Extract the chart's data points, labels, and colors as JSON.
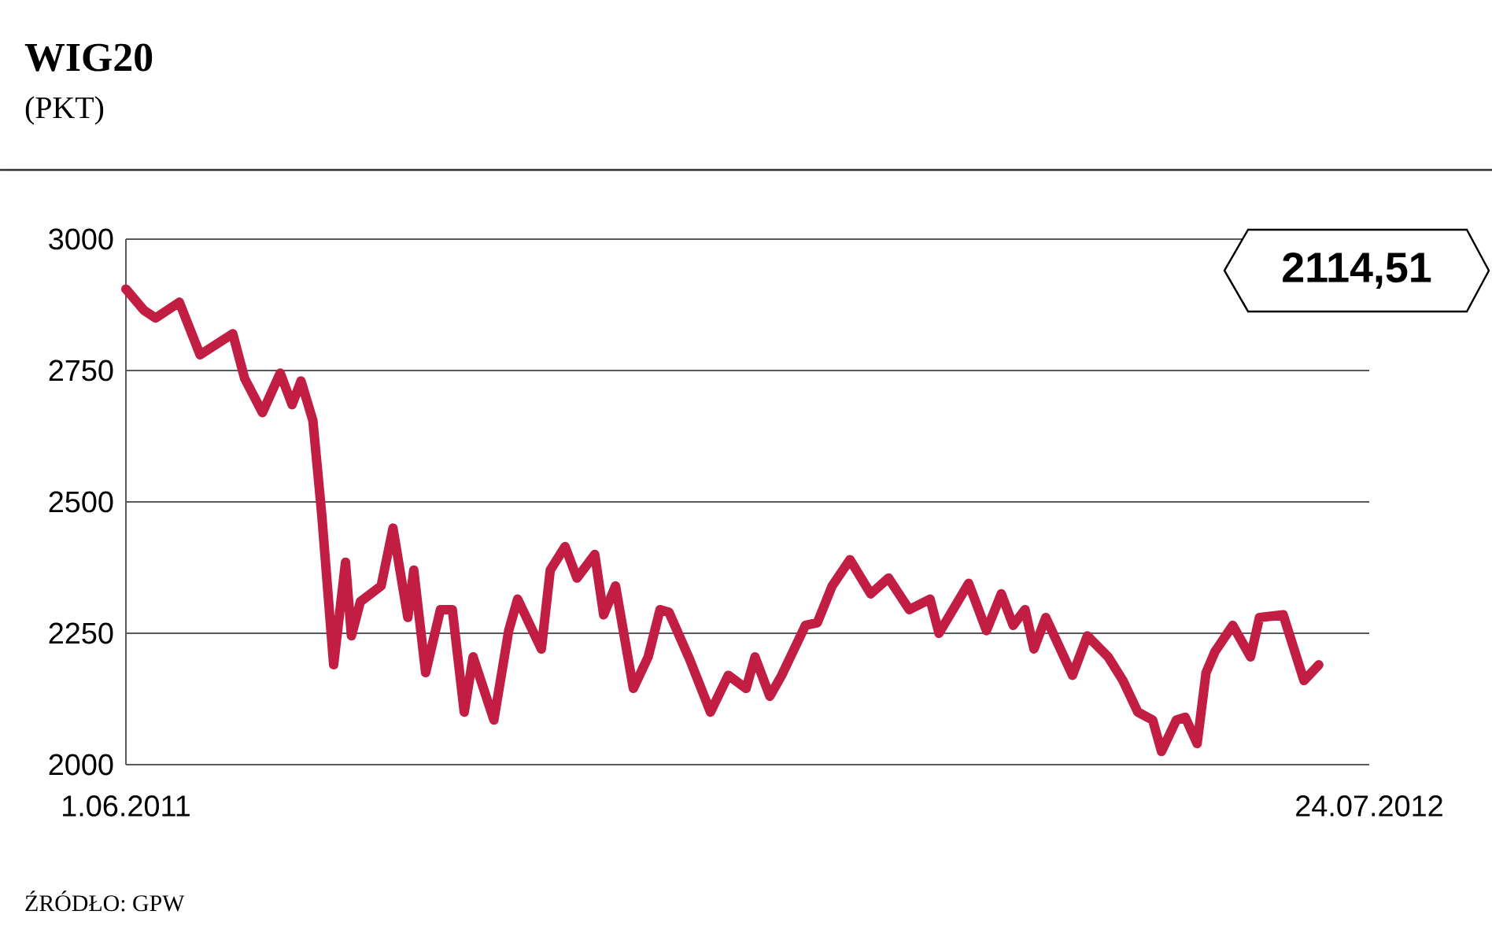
{
  "chart_data": {
    "type": "line",
    "title": "WIG20",
    "subtitle": "(PKT)",
    "annotations": [
      "2114,51",
      "ŹRÓDŁO: GPW"
    ],
    "xlim": [
      "2011-06-01",
      "2012-07-24"
    ],
    "xticks": [
      {
        "value": "2011-06-01",
        "label": "1.06.2011"
      },
      {
        "value": "2012-07-24",
        "label": "24.07.2012"
      }
    ],
    "ylim": [
      2000,
      3000
    ],
    "yticks": [
      2000,
      2250,
      2500,
      2750,
      3000
    ],
    "grid": "y",
    "line_style": "solid",
    "marker": "none",
    "x": [
      "2011-06-01",
      "2011-06-07",
      "2011-06-11",
      "2011-06-19",
      "2011-06-26",
      "2011-07-07",
      "2011-07-11",
      "2011-07-17",
      "2011-07-23",
      "2011-07-27",
      "2011-07-30",
      "2011-08-03",
      "2011-08-06",
      "2011-08-10",
      "2011-08-14",
      "2011-08-16",
      "2011-08-19",
      "2011-08-26",
      "2011-08-30",
      "2011-09-04",
      "2011-09-06",
      "2011-09-10",
      "2011-09-15",
      "2011-09-19",
      "2011-09-23",
      "2011-09-26",
      "2011-10-03",
      "2011-10-08",
      "2011-10-11",
      "2011-10-19",
      "2011-10-22",
      "2011-10-27",
      "2011-10-31",
      "2011-11-06",
      "2011-11-09",
      "2011-11-13",
      "2011-11-19",
      "2011-11-24",
      "2011-11-28",
      "2011-12-01",
      "2011-12-08",
      "2011-12-15",
      "2011-12-21",
      "2011-12-27",
      "2011-12-30",
      "2012-01-04",
      "2012-01-08",
      "2012-01-16",
      "2012-01-20",
      "2012-01-25",
      "2012-01-31",
      "2012-02-07",
      "2012-02-13",
      "2012-02-20",
      "2012-02-27",
      "2012-03-01",
      "2012-03-11",
      "2012-03-17",
      "2012-03-22",
      "2012-03-26",
      "2012-03-30",
      "2012-04-02",
      "2012-04-06",
      "2012-04-15",
      "2012-04-20",
      "2012-04-27",
      "2012-05-02",
      "2012-05-07",
      "2012-05-12",
      "2012-05-15",
      "2012-05-20",
      "2012-05-23",
      "2012-05-27",
      "2012-05-30",
      "2012-06-02",
      "2012-06-08",
      "2012-06-14",
      "2012-06-17",
      "2012-06-25",
      "2012-07-02",
      "2012-07-07"
    ],
    "series": [
      {
        "color": "#c21e44",
        "values": [
          2905,
          2865,
          2850,
          2880,
          2780,
          2820,
          2735,
          2670,
          2745,
          2685,
          2730,
          2655,
          2475,
          2190,
          2385,
          2245,
          2310,
          2340,
          2450,
          2280,
          2370,
          2175,
          2295,
          2295,
          2100,
          2205,
          2085,
          2255,
          2315,
          2220,
          2370,
          2415,
          2355,
          2400,
          2285,
          2340,
          2145,
          2205,
          2295,
          2290,
          2200,
          2100,
          2170,
          2145,
          2205,
          2130,
          2170,
          2265,
          2270,
          2340,
          2390,
          2325,
          2355,
          2295,
          2315,
          2250,
          2345,
          2255,
          2325,
          2265,
          2295,
          2220,
          2280,
          2170,
          2245,
          2205,
          2160,
          2100,
          2085,
          2025,
          2085,
          2090,
          2040,
          2175,
          2215,
          2265,
          2205,
          2280,
          2285,
          2160,
          2190
        ]
      }
    ]
  }
}
